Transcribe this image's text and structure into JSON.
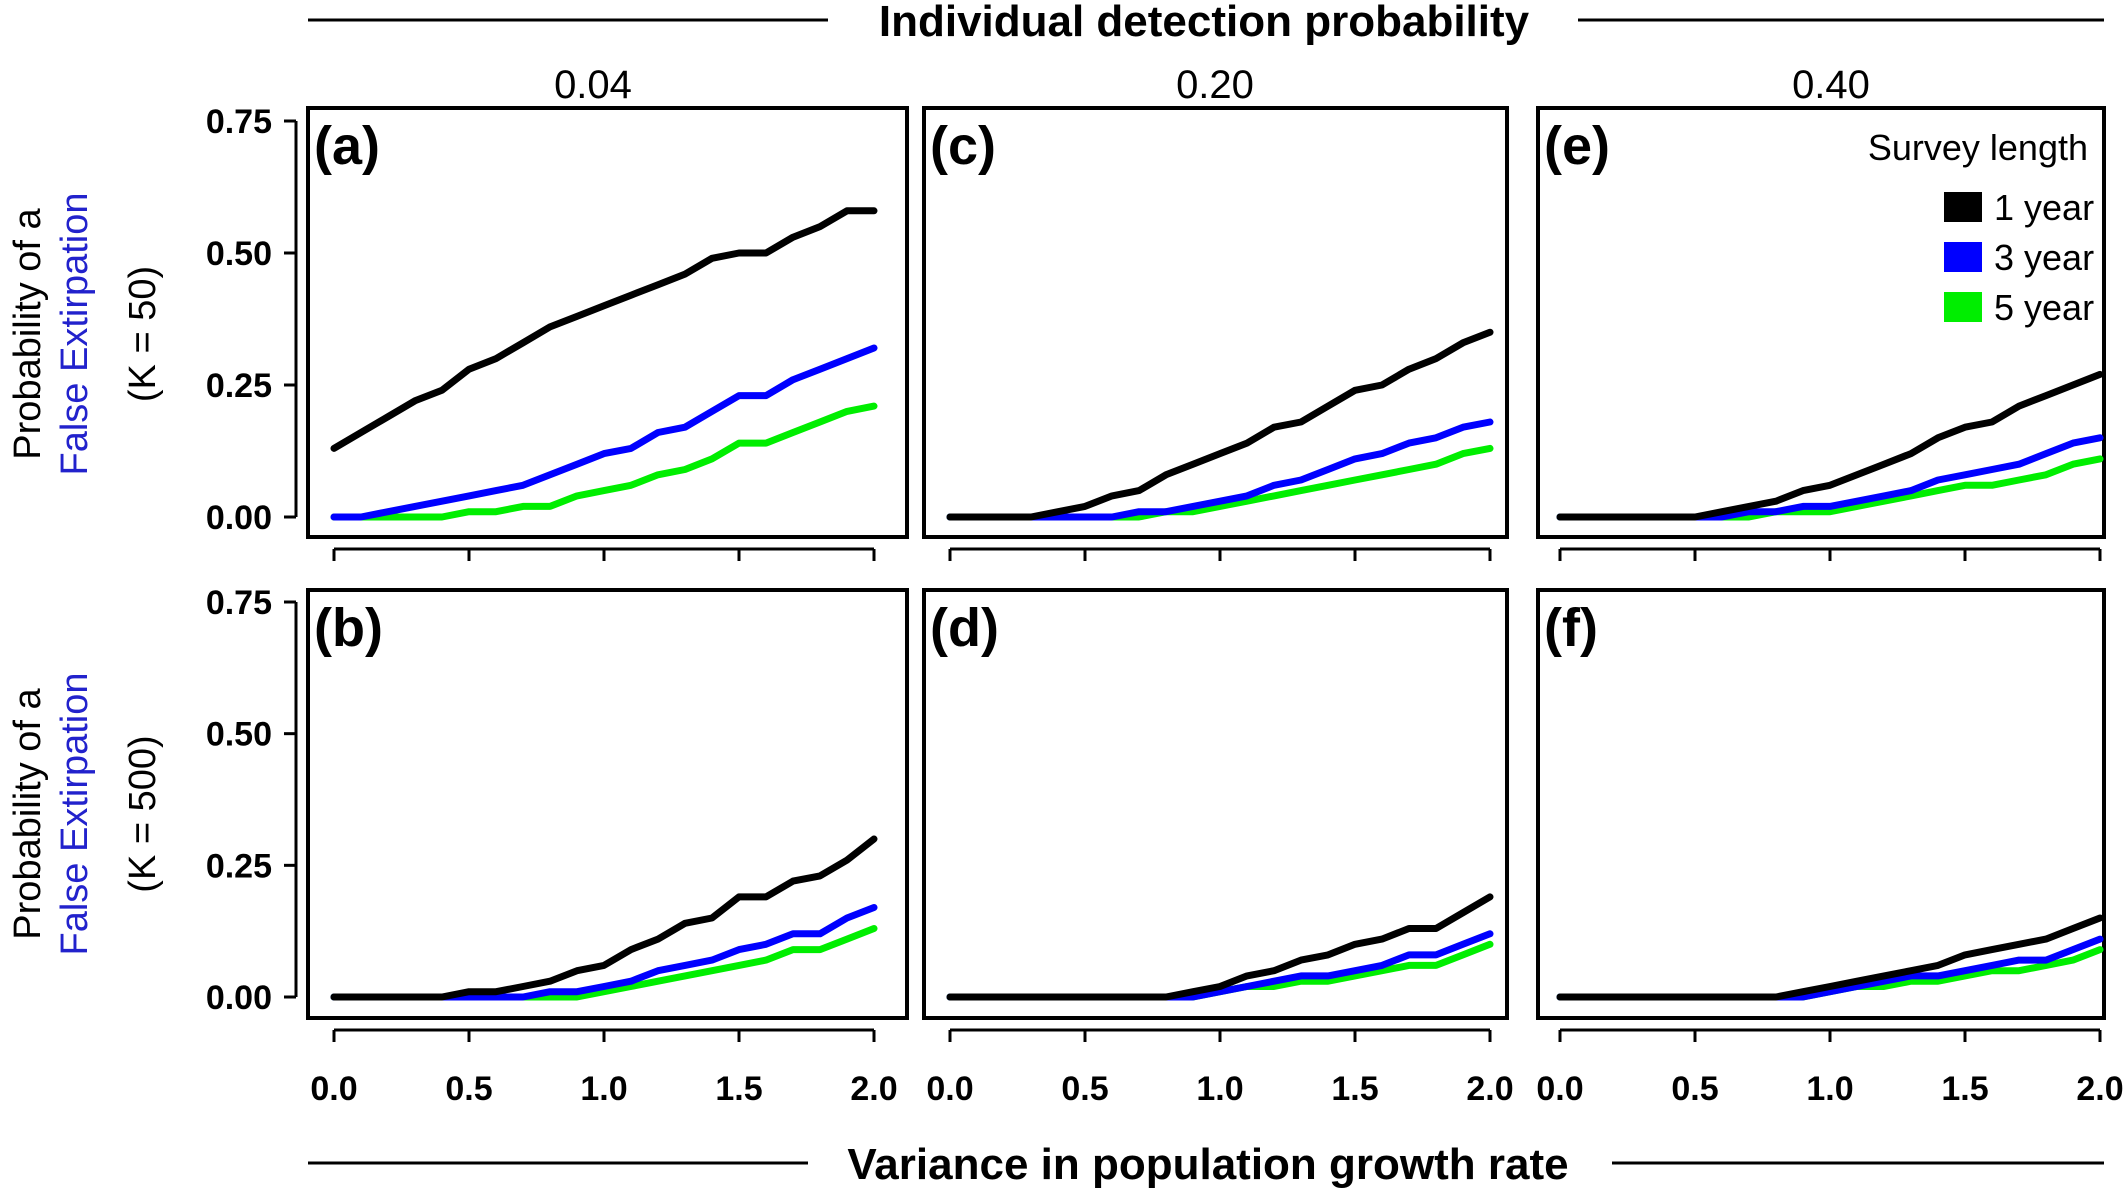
{
  "header": {
    "title": "Individual detection probability",
    "columns": [
      "0.04",
      "0.20",
      "0.40"
    ]
  },
  "footer": {
    "xlabel": "Variance in population growth rate"
  },
  "rows": [
    {
      "line1": "Probability of a",
      "line2": "False Extirpation",
      "line3": "(K = 50)"
    },
    {
      "line1": "Probability of a",
      "line2": "False Extirpation",
      "line3": "(K = 500)"
    }
  ],
  "legend": {
    "title": "Survey length",
    "entries": [
      {
        "label": "1 year",
        "color": "#000000"
      },
      {
        "label": "3 year",
        "color": "#0000ff"
      },
      {
        "label": "5 year",
        "color": "#00ee00"
      }
    ]
  },
  "colors": {
    "highlight_text": "#2222cc"
  },
  "chart_data": {
    "type": "line",
    "xlabel": "Variance in population growth rate",
    "xlim": [
      0,
      2
    ],
    "ylim": [
      0,
      0.75
    ],
    "x_ticks": [
      "0.0",
      "0.5",
      "1.0",
      "1.5",
      "2.0"
    ],
    "y_ticks": [
      "0.00",
      "0.25",
      "0.50",
      "0.75"
    ],
    "x": [
      0.0,
      0.1,
      0.2,
      0.3,
      0.4,
      0.5,
      0.6,
      0.7,
      0.8,
      0.9,
      1.0,
      1.1,
      1.2,
      1.3,
      1.4,
      1.5,
      1.6,
      1.7,
      1.8,
      1.9,
      2.0
    ],
    "panels": [
      {
        "label": "(a)",
        "detection_probability": "0.04",
        "K": 50,
        "series": [
          {
            "name": "1 year",
            "values": [
              0.13,
              0.16,
              0.19,
              0.22,
              0.24,
              0.28,
              0.3,
              0.33,
              0.36,
              0.38,
              0.4,
              0.42,
              0.44,
              0.46,
              0.49,
              0.5,
              0.5,
              0.53,
              0.55,
              0.58,
              0.58
            ]
          },
          {
            "name": "3 year",
            "values": [
              0.0,
              0.0,
              0.01,
              0.02,
              0.03,
              0.04,
              0.05,
              0.06,
              0.08,
              0.1,
              0.12,
              0.13,
              0.16,
              0.17,
              0.2,
              0.23,
              0.23,
              0.26,
              0.28,
              0.3,
              0.32
            ]
          },
          {
            "name": "5 year",
            "values": [
              0.0,
              0.0,
              0.0,
              0.0,
              0.0,
              0.01,
              0.01,
              0.02,
              0.02,
              0.04,
              0.05,
              0.06,
              0.08,
              0.09,
              0.11,
              0.14,
              0.14,
              0.16,
              0.18,
              0.2,
              0.21
            ]
          }
        ]
      },
      {
        "label": "(b)",
        "detection_probability": "0.04",
        "K": 500,
        "series": [
          {
            "name": "1 year",
            "values": [
              0.0,
              0.0,
              0.0,
              0.0,
              0.0,
              0.01,
              0.01,
              0.02,
              0.03,
              0.05,
              0.06,
              0.09,
              0.11,
              0.14,
              0.15,
              0.19,
              0.19,
              0.22,
              0.23,
              0.26,
              0.3
            ]
          },
          {
            "name": "3 year",
            "values": [
              0.0,
              0.0,
              0.0,
              0.0,
              0.0,
              0.0,
              0.0,
              0.0,
              0.01,
              0.01,
              0.02,
              0.03,
              0.05,
              0.06,
              0.07,
              0.09,
              0.1,
              0.12,
              0.12,
              0.15,
              0.17
            ]
          },
          {
            "name": "5 year",
            "values": [
              0.0,
              0.0,
              0.0,
              0.0,
              0.0,
              0.0,
              0.0,
              0.0,
              0.0,
              0.0,
              0.01,
              0.02,
              0.03,
              0.04,
              0.05,
              0.06,
              0.07,
              0.09,
              0.09,
              0.11,
              0.13
            ]
          }
        ]
      },
      {
        "label": "(c)",
        "detection_probability": "0.20",
        "K": 50,
        "series": [
          {
            "name": "1 year",
            "values": [
              0.0,
              0.0,
              0.0,
              0.0,
              0.01,
              0.02,
              0.04,
              0.05,
              0.08,
              0.1,
              0.12,
              0.14,
              0.17,
              0.18,
              0.21,
              0.24,
              0.25,
              0.28,
              0.3,
              0.33,
              0.35
            ]
          },
          {
            "name": "3 year",
            "values": [
              0.0,
              0.0,
              0.0,
              0.0,
              0.0,
              0.0,
              0.0,
              0.01,
              0.01,
              0.02,
              0.03,
              0.04,
              0.06,
              0.07,
              0.09,
              0.11,
              0.12,
              0.14,
              0.15,
              0.17,
              0.18
            ]
          },
          {
            "name": "5 year",
            "values": [
              0.0,
              0.0,
              0.0,
              0.0,
              0.0,
              0.0,
              0.0,
              0.0,
              0.01,
              0.01,
              0.02,
              0.03,
              0.04,
              0.05,
              0.06,
              0.07,
              0.08,
              0.09,
              0.1,
              0.12,
              0.13
            ]
          }
        ]
      },
      {
        "label": "(d)",
        "detection_probability": "0.20",
        "K": 500,
        "series": [
          {
            "name": "1 year",
            "values": [
              0.0,
              0.0,
              0.0,
              0.0,
              0.0,
              0.0,
              0.0,
              0.0,
              0.0,
              0.01,
              0.02,
              0.04,
              0.05,
              0.07,
              0.08,
              0.1,
              0.11,
              0.13,
              0.13,
              0.16,
              0.19
            ]
          },
          {
            "name": "3 year",
            "values": [
              0.0,
              0.0,
              0.0,
              0.0,
              0.0,
              0.0,
              0.0,
              0.0,
              0.0,
              0.0,
              0.01,
              0.02,
              0.03,
              0.04,
              0.04,
              0.05,
              0.06,
              0.08,
              0.08,
              0.1,
              0.12
            ]
          },
          {
            "name": "5 year",
            "values": [
              0.0,
              0.0,
              0.0,
              0.0,
              0.0,
              0.0,
              0.0,
              0.0,
              0.0,
              0.0,
              0.01,
              0.02,
              0.02,
              0.03,
              0.03,
              0.04,
              0.05,
              0.06,
              0.06,
              0.08,
              0.1
            ]
          }
        ]
      },
      {
        "label": "(e)",
        "detection_probability": "0.40",
        "K": 50,
        "series": [
          {
            "name": "1 year",
            "values": [
              0.0,
              0.0,
              0.0,
              0.0,
              0.0,
              0.0,
              0.01,
              0.02,
              0.03,
              0.05,
              0.06,
              0.08,
              0.1,
              0.12,
              0.15,
              0.17,
              0.18,
              0.21,
              0.23,
              0.25,
              0.27
            ]
          },
          {
            "name": "3 year",
            "values": [
              0.0,
              0.0,
              0.0,
              0.0,
              0.0,
              0.0,
              0.0,
              0.01,
              0.01,
              0.02,
              0.02,
              0.03,
              0.04,
              0.05,
              0.07,
              0.08,
              0.09,
              0.1,
              0.12,
              0.14,
              0.15
            ]
          },
          {
            "name": "5 year",
            "values": [
              0.0,
              0.0,
              0.0,
              0.0,
              0.0,
              0.0,
              0.0,
              0.0,
              0.01,
              0.01,
              0.01,
              0.02,
              0.03,
              0.04,
              0.05,
              0.06,
              0.06,
              0.07,
              0.08,
              0.1,
              0.11
            ]
          }
        ]
      },
      {
        "label": "(f)",
        "detection_probability": "0.40",
        "K": 500,
        "series": [
          {
            "name": "1 year",
            "values": [
              0.0,
              0.0,
              0.0,
              0.0,
              0.0,
              0.0,
              0.0,
              0.0,
              0.0,
              0.01,
              0.02,
              0.03,
              0.04,
              0.05,
              0.06,
              0.08,
              0.09,
              0.1,
              0.11,
              0.13,
              0.15
            ]
          },
          {
            "name": "3 year",
            "values": [
              0.0,
              0.0,
              0.0,
              0.0,
              0.0,
              0.0,
              0.0,
              0.0,
              0.0,
              0.0,
              0.01,
              0.02,
              0.03,
              0.04,
              0.04,
              0.05,
              0.06,
              0.07,
              0.07,
              0.09,
              0.11
            ]
          },
          {
            "name": "5 year",
            "values": [
              0.0,
              0.0,
              0.0,
              0.0,
              0.0,
              0.0,
              0.0,
              0.0,
              0.0,
              0.0,
              0.01,
              0.02,
              0.02,
              0.03,
              0.03,
              0.04,
              0.05,
              0.05,
              0.06,
              0.07,
              0.09
            ]
          }
        ]
      }
    ]
  }
}
